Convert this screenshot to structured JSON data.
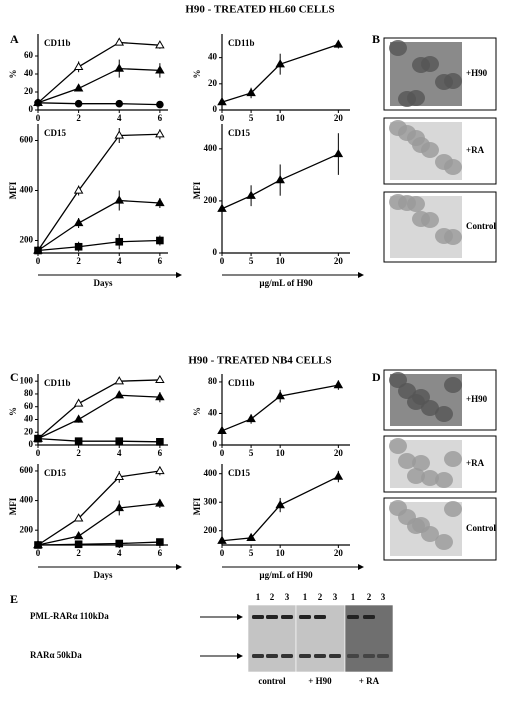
{
  "titles": [
    "H90 - TREATED HL60 CELLS",
    "H90 - TREATED NB4 CELLS"
  ],
  "panel_labels": [
    "A",
    "B",
    "C",
    "D",
    "E"
  ],
  "micrographs": [
    [
      "+H90",
      "+RA",
      "Control"
    ],
    [
      "+H90",
      "+RA",
      "Control"
    ]
  ],
  "blot": {
    "lanes": [
      "1",
      "2",
      "3",
      "1",
      "2",
      "3",
      "1",
      "2",
      "3"
    ],
    "bands": [
      "PML-RARα 110kDa",
      "RARα 50kDa"
    ],
    "groups": [
      "control",
      "+ H90",
      "+ RA"
    ]
  },
  "chart_data": [
    {
      "type": "line",
      "title": "CD11b",
      "ylabel": "%",
      "x": [
        0,
        2,
        4,
        6
      ],
      "xlim": [
        0,
        6.4
      ],
      "xticks": [
        0,
        2,
        4,
        6
      ],
      "ylim": [
        0,
        80
      ],
      "yticks": [
        0,
        20,
        40,
        60
      ],
      "series": [
        {
          "marker": "open-triangle",
          "color": "#000000",
          "values": [
            8,
            48,
            75,
            72
          ],
          "errors": [
            2,
            6,
            2,
            4
          ]
        },
        {
          "marker": "triangle",
          "color": "#000000",
          "values": [
            8,
            24,
            46,
            44
          ],
          "errors": [
            2,
            3,
            10,
            8
          ]
        },
        {
          "marker": "circle",
          "color": "#000000",
          "values": [
            8,
            7,
            7,
            6
          ],
          "errors": [
            1,
            1,
            1,
            1
          ]
        }
      ]
    },
    {
      "type": "line",
      "title": "CD11b",
      "ylabel": "%",
      "x": [
        0,
        5,
        10,
        20
      ],
      "xlim": [
        0,
        22
      ],
      "xticks": [
        0,
        5,
        10,
        20
      ],
      "ylim": [
        0,
        55
      ],
      "yticks": [
        0,
        20,
        40
      ],
      "series": [
        {
          "marker": "triangle",
          "color": "#000000",
          "values": [
            6,
            13,
            35,
            50
          ],
          "errors": [
            3,
            4,
            8,
            3
          ]
        }
      ]
    },
    {
      "type": "line",
      "title": "CD15",
      "ylabel": "MFI",
      "xlabel": "Days",
      "x": [
        0,
        2,
        4,
        6
      ],
      "xlim": [
        0,
        6.4
      ],
      "xticks": [
        0,
        2,
        4,
        6
      ],
      "ylim": [
        150,
        650
      ],
      "yticks": [
        200,
        400,
        600
      ],
      "series": [
        {
          "marker": "open-triangle",
          "color": "#000000",
          "values": [
            160,
            400,
            620,
            625
          ],
          "errors": [
            10,
            20,
            30,
            20
          ]
        },
        {
          "marker": "triangle",
          "color": "#000000",
          "values": [
            160,
            270,
            360,
            350
          ],
          "errors": [
            10,
            20,
            40,
            20
          ]
        },
        {
          "marker": "square",
          "color": "#000000",
          "values": [
            160,
            175,
            195,
            200
          ],
          "errors": [
            10,
            20,
            30,
            20
          ]
        }
      ]
    },
    {
      "type": "line",
      "title": "CD15",
      "ylabel": "MFI",
      "xlabel": "µg/mL  of  H90",
      "x": [
        0,
        5,
        10,
        20
      ],
      "xlim": [
        0,
        22
      ],
      "xticks": [
        0,
        5,
        10,
        20
      ],
      "ylim": [
        0,
        480
      ],
      "yticks": [
        0,
        200,
        400
      ],
      "series": [
        {
          "marker": "triangle",
          "color": "#000000",
          "values": [
            170,
            220,
            280,
            380
          ],
          "errors": [
            30,
            40,
            60,
            80
          ]
        }
      ]
    },
    {
      "type": "line",
      "title": "CD11b",
      "ylabel": "%",
      "x": [
        0,
        2,
        4,
        6
      ],
      "xlim": [
        0,
        6.4
      ],
      "xticks": [
        0,
        2,
        4,
        6
      ],
      "ylim": [
        0,
        105
      ],
      "yticks": [
        0,
        20,
        40,
        60,
        80,
        100
      ],
      "series": [
        {
          "marker": "open-triangle",
          "color": "#000000",
          "values": [
            10,
            65,
            100,
            102
          ],
          "errors": [
            3,
            4,
            4,
            3
          ]
        },
        {
          "marker": "triangle",
          "color": "#000000",
          "values": [
            10,
            40,
            78,
            75
          ],
          "errors": [
            3,
            5,
            4,
            8
          ]
        },
        {
          "marker": "square",
          "color": "#000000",
          "values": [
            10,
            6,
            6,
            5
          ],
          "errors": [
            2,
            2,
            2,
            2
          ]
        }
      ]
    },
    {
      "type": "line",
      "title": "CD11b",
      "ylabel": "%",
      "x": [
        0,
        5,
        10,
        20
      ],
      "xlim": [
        0,
        22
      ],
      "xticks": [
        0,
        5,
        10,
        20
      ],
      "ylim": [
        0,
        85
      ],
      "yticks": [
        0,
        40,
        80
      ],
      "series": [
        {
          "marker": "triangle",
          "color": "#000000",
          "values": [
            18,
            33,
            62,
            76
          ],
          "errors": [
            5,
            6,
            8,
            6
          ]
        }
      ]
    },
    {
      "type": "line",
      "title": "CD15",
      "ylabel": "MFI",
      "xlabel": "Days",
      "x": [
        0,
        2,
        4,
        6
      ],
      "xlim": [
        0,
        6.4
      ],
      "xticks": [
        0,
        2,
        4,
        6
      ],
      "ylim": [
        100,
        620
      ],
      "yticks": [
        200,
        400,
        600
      ],
      "series": [
        {
          "marker": "open-triangle",
          "color": "#000000",
          "values": [
            100,
            280,
            560,
            600
          ],
          "errors": [
            8,
            15,
            40,
            30
          ]
        },
        {
          "marker": "triangle",
          "color": "#000000",
          "values": [
            100,
            160,
            350,
            380
          ],
          "errors": [
            8,
            15,
            50,
            30
          ]
        },
        {
          "marker": "square",
          "color": "#000000",
          "values": [
            100,
            105,
            110,
            120
          ],
          "errors": [
            8,
            10,
            10,
            10
          ]
        }
      ]
    },
    {
      "type": "line",
      "title": "CD15",
      "ylabel": "MFI",
      "xlabel": "µg/mL  of  H90",
      "x": [
        0,
        5,
        10,
        20
      ],
      "xlim": [
        0,
        22
      ],
      "xticks": [
        0,
        5,
        10,
        20
      ],
      "ylim": [
        150,
        420
      ],
      "yticks": [
        200,
        300,
        400
      ],
      "series": [
        {
          "marker": "triangle",
          "color": "#000000",
          "values": [
            165,
            175,
            290,
            390
          ],
          "errors": [
            5,
            8,
            25,
            20
          ]
        }
      ]
    }
  ]
}
